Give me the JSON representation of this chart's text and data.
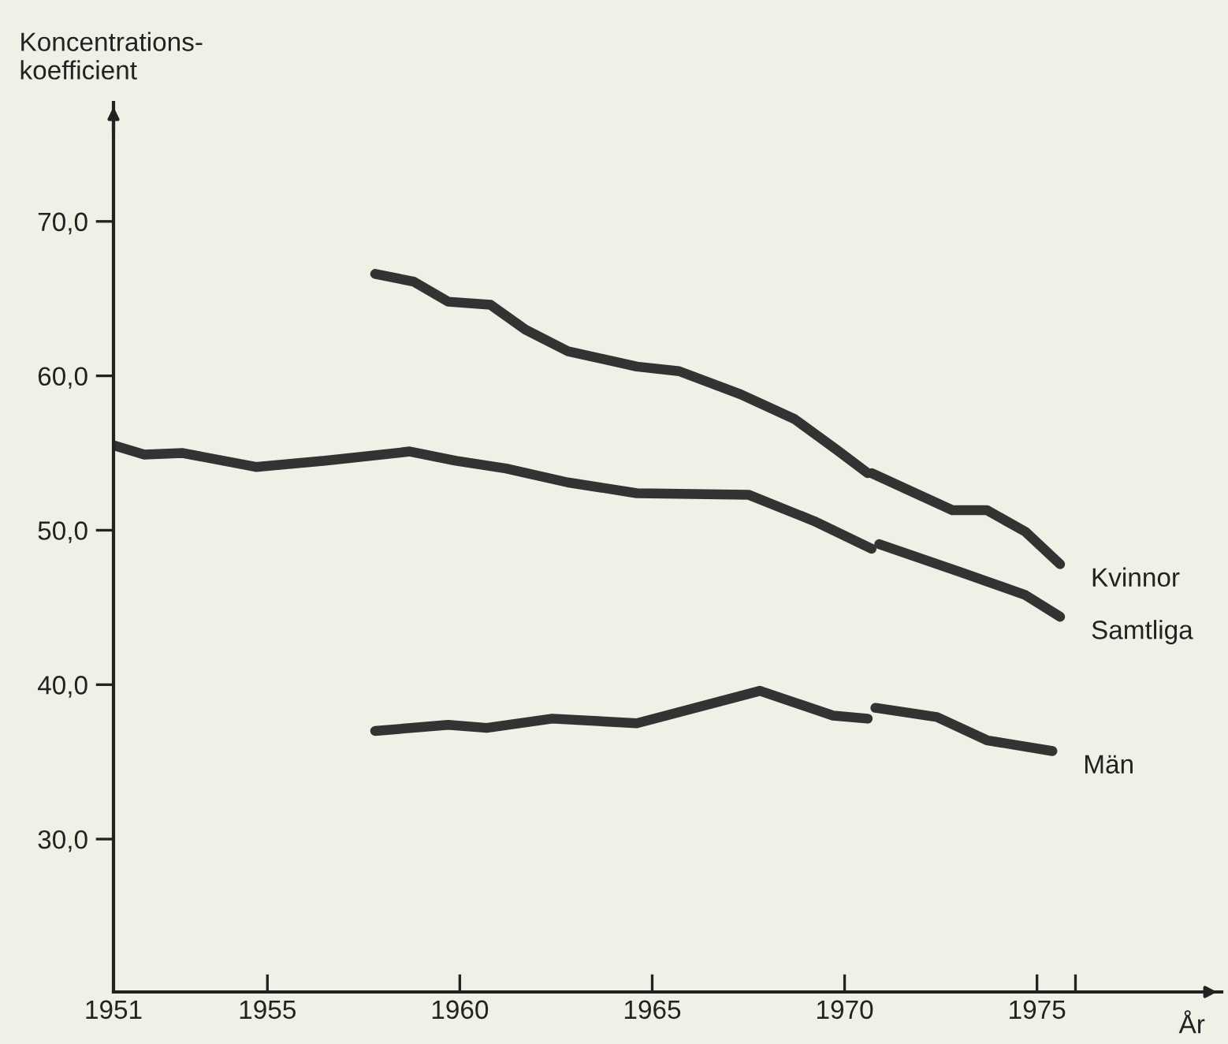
{
  "chart_data": {
    "type": "line",
    "ylabel": "Koncentrations-\nkoefficient",
    "xlabel": "År",
    "xlim": [
      1951,
      1979.8
    ],
    "ylim": [
      20.1,
      77.7
    ],
    "xticks": [
      {
        "value": 1951,
        "label": "1951"
      },
      1955,
      1960,
      1965,
      1970,
      1975,
      {
        "value": 1976,
        "label": null
      }
    ],
    "yticks": [
      {
        "value": 30,
        "label": "30,0"
      },
      {
        "value": 40,
        "label": "40,0"
      },
      {
        "value": 50,
        "label": "50,0"
      },
      {
        "value": 60,
        "label": "60,0"
      },
      {
        "value": 70,
        "label": "70,0"
      }
    ],
    "grid": false,
    "legend": false,
    "marker": "none",
    "line_style": "solid",
    "series": [
      {
        "name": "Kvinnor",
        "color": "#333333",
        "x": [
          1957.8,
          1958.8,
          1959.7,
          1960.8,
          1961.7,
          1962.8,
          1964.6,
          1965.7,
          1967.3,
          1968.7,
          1969.8,
          1970.6,
          1970.65,
          1970.7,
          1972.8,
          1973.7,
          1974.7,
          1975.6
        ],
        "values": [
          66.6,
          66.1,
          64.8,
          64.6,
          63.0,
          61.6,
          60.6,
          60.3,
          58.8,
          57.2,
          55.2,
          53.7,
          null,
          53.7,
          51.3,
          51.3,
          49.9,
          47.8
        ]
      },
      {
        "name": "Samtliga",
        "color": "#333333",
        "x": [
          1951,
          1951.8,
          1952.8,
          1954.7,
          1956.5,
          1958.7,
          1959.9,
          1961.2,
          1962.8,
          1964.6,
          1967.5,
          1969.2,
          1970.7,
          1970.8,
          1970.9,
          1973.0,
          1974.7,
          1975.6
        ],
        "values": [
          55.5,
          54.9,
          55.0,
          54.1,
          54.5,
          55.1,
          54.5,
          54.0,
          53.1,
          52.4,
          52.3,
          50.6,
          48.8,
          null,
          49.1,
          47.3,
          45.8,
          44.4
        ]
      },
      {
        "name": "Män",
        "color": "#333333",
        "x": [
          1957.8,
          1959.7,
          1960.7,
          1962.4,
          1964.6,
          1967.8,
          1969.7,
          1970.6,
          1970.7,
          1970.8,
          1972.4,
          1973.7,
          1975.4
        ],
        "values": [
          37.0,
          37.4,
          37.2,
          37.8,
          37.5,
          39.6,
          38.0,
          37.8,
          null,
          38.5,
          37.9,
          36.4,
          35.7
        ]
      }
    ]
  }
}
